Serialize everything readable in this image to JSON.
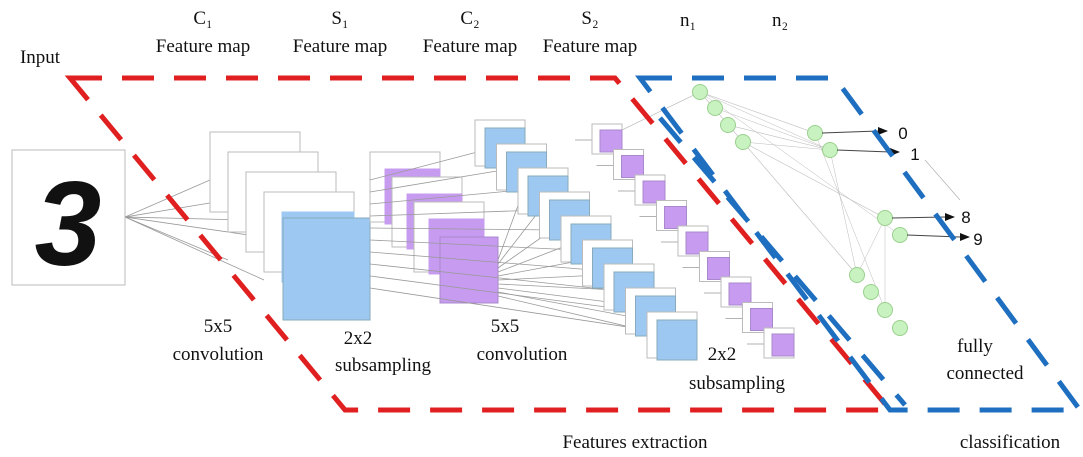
{
  "input": {
    "label": "Input",
    "digit": "3"
  },
  "layers": [
    {
      "name": "C₁",
      "label": "Feature map"
    },
    {
      "name": "S₁",
      "label": "Feature map"
    },
    {
      "name": "C₂",
      "label": "Feature map"
    },
    {
      "name": "S₂",
      "label": "Feature map"
    }
  ],
  "neurons": [
    "n₁",
    "n₂"
  ],
  "operations": [
    [
      "5x5",
      "convolution"
    ],
    [
      "2x2",
      "subsampling"
    ],
    [
      "5x5",
      "convolution"
    ],
    [
      "2x2",
      "subsampling"
    ]
  ],
  "fully_connected": [
    "fully",
    "connected"
  ],
  "outputs": [
    "0",
    "1",
    "8",
    "9"
  ],
  "regions": {
    "extraction": "Features extraction",
    "classification": "classification"
  }
}
